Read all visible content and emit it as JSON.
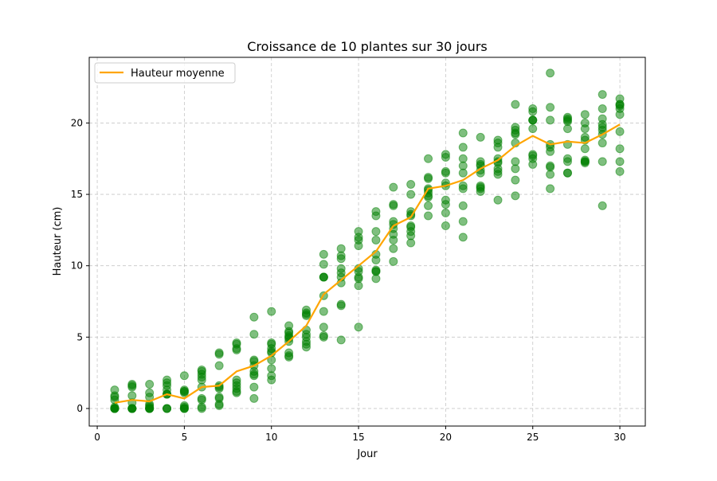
{
  "chart_data": {
    "type": "scatter",
    "title": "Croissance de 10 plantes sur 30 jours",
    "xlabel": "Jour",
    "ylabel": "Hauteur (cm)",
    "xlim": [
      -0.46,
      31.46
    ],
    "ylim": [
      -1.23,
      24.6
    ],
    "xticks": [
      0,
      5,
      10,
      15,
      20,
      25,
      30
    ],
    "yticks": [
      0,
      5,
      10,
      15,
      20
    ],
    "grid": true,
    "legend_position": "top-left",
    "colors": {
      "points": "#008000",
      "mean_line": "#FFA500"
    },
    "points": [
      [
        0,
        0,
        0,
        0,
        0.1,
        0.6,
        0.8,
        0.9,
        1.3,
        0
      ],
      [
        0,
        0,
        0,
        0,
        0.4,
        0.9,
        1.5,
        1.6,
        1.7,
        0
      ],
      [
        0,
        0,
        0.1,
        0.2,
        0.3,
        0.8,
        1.1,
        1.7,
        0,
        0
      ],
      [
        0,
        0,
        0,
        1.0,
        1.0,
        1.3,
        1.6,
        1.8,
        2.0,
        1.0
      ],
      [
        0,
        0,
        0.1,
        0.2,
        1.1,
        1.2,
        1.3,
        2.3,
        0,
        1.2
      ],
      [
        0,
        0.1,
        0.6,
        0.7,
        1.5,
        2.0,
        2.2,
        2.4,
        2.6,
        2.7
      ],
      [
        0.2,
        0.3,
        0.7,
        0.8,
        1.4,
        1.5,
        3.0,
        3.8,
        3.9,
        1.6
      ],
      [
        1.1,
        1.2,
        1.4,
        1.6,
        1.8,
        2.0,
        4.1,
        4.2,
        4.5,
        4.6
      ],
      [
        0.7,
        1.5,
        2.3,
        2.4,
        2.6,
        3.3,
        3.4,
        5.2,
        6.4,
        3.0
      ],
      [
        2.0,
        2.3,
        2.8,
        3.4,
        3.9,
        4.0,
        4.2,
        4.5,
        4.6,
        6.8
      ],
      [
        3.6,
        3.7,
        3.9,
        4.7,
        4.9,
        5.1,
        5.3,
        5.4,
        5.8,
        5.0
      ],
      [
        4.3,
        4.5,
        4.7,
        5.0,
        5.5,
        6.5,
        6.6,
        6.7,
        6.9,
        5.2
      ],
      [
        5.0,
        5.1,
        5.7,
        6.8,
        7.9,
        9.2,
        9.2,
        10.1,
        10.8,
        9.2
      ],
      [
        4.8,
        7.2,
        7.3,
        8.8,
        9.2,
        9.8,
        10.5,
        10.7,
        11.2,
        9.5
      ],
      [
        5.7,
        8.6,
        9.1,
        9.2,
        9.6,
        9.8,
        11.4,
        11.8,
        12.0,
        12.4
      ],
      [
        9.1,
        9.6,
        9.7,
        10.4,
        10.8,
        11.8,
        12.4,
        13.5,
        13.8,
        9.6
      ],
      [
        10.3,
        11.2,
        11.8,
        12.2,
        12.6,
        12.9,
        13.1,
        14.2,
        14.3,
        15.5
      ],
      [
        11.6,
        12.1,
        12.4,
        12.7,
        12.8,
        13.5,
        13.6,
        13.8,
        15.0,
        15.7
      ],
      [
        13.5,
        14.2,
        14.9,
        15.1,
        15.3,
        15.4,
        16.1,
        16.2,
        17.5,
        14.8
      ],
      [
        12.8,
        13.7,
        14.3,
        14.6,
        15.6,
        15.8,
        16.5,
        16.6,
        17.6,
        17.8
      ],
      [
        12.0,
        13.1,
        14.2,
        15.4,
        15.6,
        16.5,
        17.0,
        17.5,
        18.3,
        19.3
      ],
      [
        15.2,
        15.4,
        15.6,
        16.5,
        16.7,
        17.0,
        17.1,
        17.3,
        19.0,
        15.5
      ],
      [
        14.6,
        16.4,
        16.6,
        16.8,
        17.3,
        17.5,
        18.3,
        18.6,
        18.8,
        17.2
      ],
      [
        14.9,
        16.0,
        16.8,
        17.3,
        18.6,
        19.2,
        19.3,
        19.5,
        19.7,
        21.3
      ],
      [
        17.1,
        17.5,
        17.7,
        17.8,
        19.6,
        20.2,
        20.2,
        20.8,
        21.0,
        20.2
      ],
      [
        15.4,
        16.4,
        16.9,
        17.0,
        18.0,
        18.3,
        18.5,
        20.2,
        21.1,
        23.5
      ],
      [
        16.5,
        16.5,
        17.3,
        17.5,
        18.5,
        19.6,
        20.1,
        20.3,
        20.4,
        20.2
      ],
      [
        17.2,
        17.3,
        17.4,
        18.2,
        18.8,
        19.0,
        19.6,
        20.0,
        20.6,
        17.3
      ],
      [
        14.2,
        17.3,
        18.6,
        19.2,
        19.5,
        19.7,
        19.9,
        20.3,
        21.0,
        22.0
      ],
      [
        16.6,
        17.3,
        18.2,
        19.4,
        20.6,
        21.0,
        21.2,
        21.3,
        21.7,
        21.3
      ]
    ],
    "days": [
      1,
      2,
      3,
      4,
      5,
      6,
      7,
      8,
      9,
      10,
      11,
      12,
      13,
      14,
      15,
      16,
      17,
      18,
      19,
      20,
      21,
      22,
      23,
      24,
      25,
      26,
      27,
      28,
      29,
      30
    ],
    "series": [
      {
        "name": "Hauteur moyenne",
        "type": "line",
        "values": [
          0.4,
          0.6,
          0.5,
          1.0,
          0.7,
          1.5,
          1.6,
          2.6,
          3.0,
          3.7,
          4.7,
          5.8,
          8.0,
          9.0,
          10.0,
          11.0,
          12.8,
          13.4,
          15.4,
          15.6,
          16.0,
          16.8,
          17.4,
          18.4,
          19.1,
          18.5,
          18.7,
          18.6,
          19.2,
          19.9
        ]
      }
    ]
  }
}
